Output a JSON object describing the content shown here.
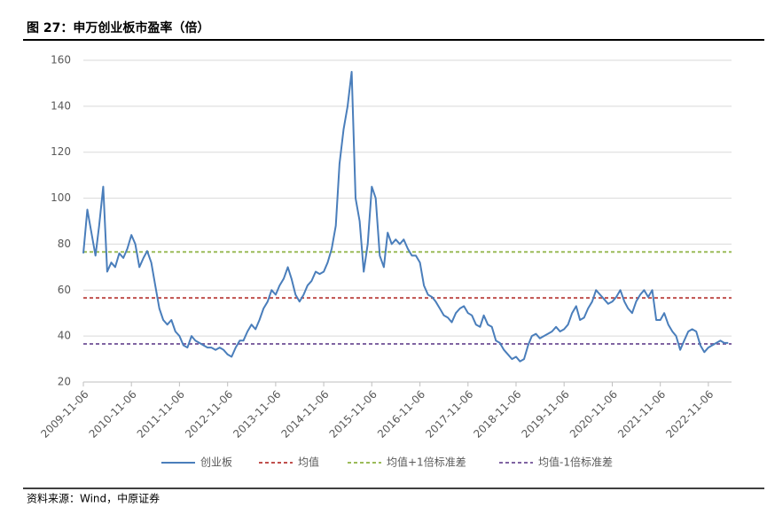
{
  "chart_data": {
    "type": "line",
    "title": "图 27：申万创业板市盈率（倍）",
    "x": [
      "2009-11-06",
      "2009-12-06",
      "2010-01-06",
      "2010-02-06",
      "2010-03-06",
      "2010-04-06",
      "2010-05-06",
      "2010-06-06",
      "2010-07-06",
      "2010-08-06",
      "2010-09-06",
      "2010-10-06",
      "2010-11-06",
      "2010-12-06",
      "2011-01-06",
      "2011-02-06",
      "2011-03-06",
      "2011-04-06",
      "2011-05-06",
      "2011-06-06",
      "2011-07-06",
      "2011-08-06",
      "2011-09-06",
      "2011-10-06",
      "2011-11-06",
      "2011-12-06",
      "2012-01-06",
      "2012-02-06",
      "2012-03-06",
      "2012-04-06",
      "2012-05-06",
      "2012-06-06",
      "2012-07-06",
      "2012-08-06",
      "2012-09-06",
      "2012-10-06",
      "2012-11-06",
      "2012-12-06",
      "2013-01-06",
      "2013-02-06",
      "2013-03-06",
      "2013-04-06",
      "2013-05-06",
      "2013-06-06",
      "2013-07-06",
      "2013-08-06",
      "2013-09-06",
      "2013-10-06",
      "2013-11-06",
      "2013-12-06",
      "2014-01-06",
      "2014-02-06",
      "2014-03-06",
      "2014-04-06",
      "2014-05-06",
      "2014-06-06",
      "2014-07-06",
      "2014-08-06",
      "2014-09-06",
      "2014-10-06",
      "2014-11-06",
      "2014-12-06",
      "2015-01-06",
      "2015-02-06",
      "2015-03-06",
      "2015-04-06",
      "2015-05-06",
      "2015-06-06",
      "2015-07-06",
      "2015-08-06",
      "2015-09-06",
      "2015-10-06",
      "2015-11-06",
      "2015-12-06",
      "2016-01-06",
      "2016-02-06",
      "2016-03-06",
      "2016-04-06",
      "2016-05-06",
      "2016-06-06",
      "2016-07-06",
      "2016-08-06",
      "2016-09-06",
      "2016-10-06",
      "2016-11-06",
      "2016-12-06",
      "2017-01-06",
      "2017-02-06",
      "2017-03-06",
      "2017-04-06",
      "2017-05-06",
      "2017-06-06",
      "2017-07-06",
      "2017-08-06",
      "2017-09-06",
      "2017-10-06",
      "2017-11-06",
      "2017-12-06",
      "2018-01-06",
      "2018-02-06",
      "2018-03-06",
      "2018-04-06",
      "2018-05-06",
      "2018-06-06",
      "2018-07-06",
      "2018-08-06",
      "2018-09-06",
      "2018-10-06",
      "2018-11-06",
      "2018-12-06",
      "2019-01-06",
      "2019-02-06",
      "2019-03-06",
      "2019-04-06",
      "2019-05-06",
      "2019-06-06",
      "2019-07-06",
      "2019-08-06",
      "2019-09-06",
      "2019-10-06",
      "2019-11-06",
      "2019-12-06",
      "2020-01-06",
      "2020-02-06",
      "2020-03-06",
      "2020-04-06",
      "2020-05-06",
      "2020-06-06",
      "2020-07-06",
      "2020-08-06",
      "2020-09-06",
      "2020-10-06",
      "2020-11-06",
      "2020-12-06",
      "2021-01-06",
      "2021-02-06",
      "2021-03-06",
      "2021-04-06",
      "2021-05-06",
      "2021-06-06",
      "2021-07-06",
      "2021-08-06",
      "2021-09-06",
      "2021-10-06",
      "2021-11-06",
      "2021-12-06",
      "2022-01-06",
      "2022-02-06",
      "2022-03-06",
      "2022-04-06",
      "2022-05-06",
      "2022-06-06",
      "2022-07-06",
      "2022-08-06",
      "2022-09-06",
      "2022-10-06",
      "2022-11-06",
      "2022-12-06",
      "2023-01-06",
      "2023-02-06",
      "2023-03-06",
      "2023-04-06"
    ],
    "series": [
      {
        "name": "创业板",
        "color": "#4a7ebb",
        "values": [
          76,
          95,
          85,
          75,
          88,
          105,
          68,
          72,
          70,
          76,
          74,
          78,
          84,
          80,
          70,
          74,
          77,
          72,
          62,
          52,
          47,
          45,
          47,
          42,
          40,
          36,
          35,
          40,
          38,
          37,
          36,
          35,
          35,
          34,
          35,
          34,
          32,
          31,
          35,
          38,
          38,
          42,
          45,
          43,
          47,
          52,
          55,
          60,
          58,
          62,
          65,
          70,
          65,
          58,
          55,
          58,
          62,
          64,
          68,
          67,
          68,
          72,
          78,
          88,
          115,
          130,
          140,
          155,
          100,
          90,
          68,
          80,
          105,
          100,
          75,
          70,
          85,
          80,
          82,
          80,
          82,
          78,
          75,
          75,
          72,
          62,
          58,
          57,
          55,
          52,
          49,
          48,
          46,
          50,
          52,
          53,
          50,
          49,
          45,
          44,
          49,
          45,
          44,
          38,
          37,
          34,
          32,
          30,
          31,
          29,
          30,
          36,
          40,
          41,
          39,
          40,
          41,
          42,
          44,
          42,
          43,
          45,
          50,
          53,
          47,
          48,
          52,
          55,
          60,
          58,
          56,
          54,
          55,
          57,
          60,
          55,
          52,
          50,
          55,
          58,
          60,
          57,
          60,
          47,
          47,
          50,
          45,
          42,
          40,
          34,
          38,
          42,
          43,
          42,
          36,
          33,
          35,
          36,
          37,
          38,
          37,
          37
        ]
      }
    ],
    "reference_lines": [
      {
        "name": "均值",
        "value": 56.6,
        "color": "#c0504d"
      },
      {
        "name": "均值+1倍标准差",
        "value": 76.6,
        "color": "#9bbb59"
      },
      {
        "name": "均值-1倍标准差",
        "value": 36.6,
        "color": "#8064a2"
      }
    ],
    "xlim": [
      "2009-11-06",
      "2023-05-01"
    ],
    "xticks": [
      "2009-11-06",
      "2010-11-06",
      "2011-11-06",
      "2012-11-06",
      "2013-11-06",
      "2014-11-06",
      "2015-11-06",
      "2016-11-06",
      "2017-11-06",
      "2018-11-06",
      "2019-11-06",
      "2020-11-06",
      "2021-11-06",
      "2022-11-06"
    ],
    "ylim": [
      20,
      160
    ],
    "yticks": [
      20,
      40,
      60,
      80,
      100,
      120,
      140,
      160
    ],
    "grid": true
  },
  "source": "资料来源：Wind，中原证券"
}
